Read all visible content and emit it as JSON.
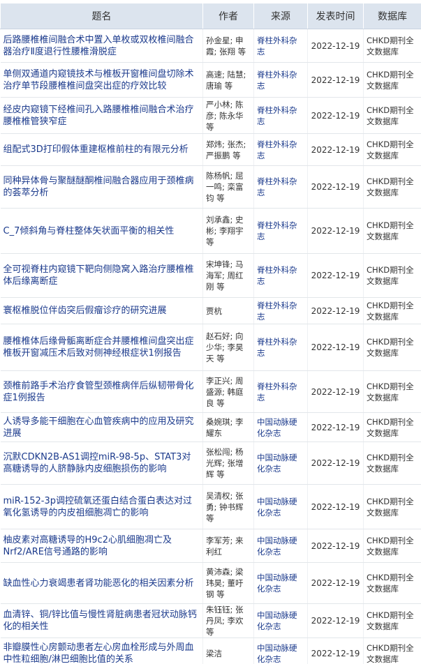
{
  "table": {
    "headers": [
      "题名",
      "作者",
      "来源",
      "发表时间",
      "数据库"
    ],
    "rows": [
      [
        "后路腰椎椎间融合术中置入单枚或双枚椎间融合器治疗Ⅱ度退行性腰椎滑脱症",
        "孙金星; 申霞; 张翔 等",
        "脊柱外科杂志",
        "2022-12-19",
        "CHKD期刊全文数据库"
      ],
      [
        "单侧双通道内窥镜技术与椎板开窗椎间盘切除术治疗单节段腰椎椎间盘突出症的疗效比较",
        "高速; 陆慧; 唐瑜 等",
        "脊柱外科杂志",
        "2022-12-19",
        "CHKD期刊全文数据库"
      ],
      [
        "经皮内窥镜下经椎间孔入路腰椎椎间融合术治疗腰椎椎管狭窄症",
        "严小林; 陈彦; 陈永华 等",
        "脊柱外科杂志",
        "2022-12-19",
        "CHKD期刊全文数据库"
      ],
      [
        "组配式3D打印假体重建枢椎前柱的有限元分析",
        "郑炜; 张杰; 严振鹏 等",
        "脊柱外科杂志",
        "2022-12-19",
        "CHKD期刊全文数据库"
      ],
      [
        "同种异体骨与聚醚醚酮椎间融合器应用于颈椎病的荟萃分析",
        "陈杨帆; 屈一鸣; 栾富钧 等",
        "脊柱外科杂志",
        "2022-12-19",
        "CHKD期刊全文数据库"
      ],
      [
        "C_7倾斜角与脊柱整体矢状面平衡的相关性",
        "刘承鑫; 史彬; 李翔宇 等",
        "脊柱外科杂志",
        "2022-12-19",
        "CHKD期刊全文数据库"
      ],
      [
        "全可视脊柱内窥镜下靶向侧隐窝入路治疗腰椎椎体后缘离断症",
        "宋坤锋; 马海军; 周红刚 等",
        "脊柱外科杂志",
        "2022-12-19",
        "CHKD期刊全文数据库"
      ],
      [
        "寰枢椎脱位伴齿突后假瘤诊疗的研究进展",
        "贾杭",
        "脊柱外科杂志",
        "2022-12-19",
        "CHKD期刊全文数据库"
      ],
      [
        "腰椎椎体后缘骨骺离断症合并腰椎椎间盘突出症椎板开窗减压术后致对侧神经根症状1例报告",
        "赵石好; 向少华; 李昊天 等",
        "脊柱外科杂志",
        "2022-12-19",
        "CHKD期刊全文数据库"
      ],
      [
        "颈椎前路手术治疗食管型颈椎病伴后纵韧带骨化症1例报告",
        "李正兴; 周盛源; 韩庭良 等",
        "脊柱外科杂志",
        "2022-12-19",
        "CHKD期刊全文数据库"
      ],
      [
        "人诱导多能干细胞在心血管疾病中的应用及研究进展",
        "桑婉琪; 李耀东",
        "中国动脉硬化杂志",
        "2022-12-19",
        "CHKD期刊全文数据库"
      ],
      [
        "沉默CDKN2B-AS1调控miR-98-5p、STAT3对高糖诱导的人脐静脉内皮细胞损伤的影响",
        "张松闯; 杨光辉; 张增辉 等",
        "中国动脉硬化杂志",
        "2022-12-19",
        "CHKD期刊全文数据库"
      ],
      [
        "miR-152-3p调控硫氧还蛋白结合蛋白表达对过氧化氢诱导的内皮祖细胞凋亡的影响",
        "吴清权; 张勇; 钟书辉 等",
        "中国动脉硬化杂志",
        "2022-12-19",
        "CHKD期刊全文数据库"
      ],
      [
        "柚皮素对高糖诱导的H9c2心肌细胞凋亡及Nrf2/ARE信号通路的影响",
        "李军芳; 来利红",
        "中国动脉硬化杂志",
        "2022-12-19",
        "CHKD期刊全文数据库"
      ],
      [
        "缺血性心力衰竭患者肾功能恶化的相关因素分析",
        "黄沛森; 梁玮昊; 董吁钢 等",
        "中国动脉硬化杂志",
        "2022-12-19",
        "CHKD期刊全文数据库"
      ],
      [
        "血清锌、铜/锌比值与慢性肾脏病患者冠状动脉钙化的相关性",
        "朱钰钰; 张丹凤; 李欢 等",
        "中国动脉硬化杂志",
        "2022-12-19",
        "CHKD期刊全文数据库"
      ],
      [
        "非瓣膜性心房颤动患者左心房血栓形成与外周血中性粒细胞/淋巴细胞比值的关系",
        "梁洁",
        "中国动脉硬化杂志",
        "2022-12-19",
        "CHKD期刊全文数据库"
      ]
    ]
  }
}
